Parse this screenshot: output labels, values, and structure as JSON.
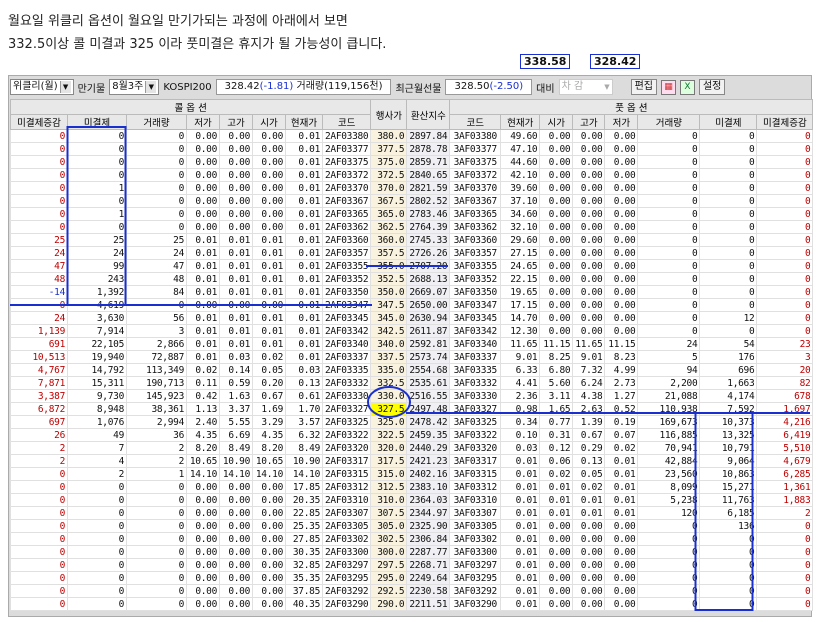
{
  "caption": [
    "월요일 위클리 옵션이 월요일 만기가되는 과정에 아래에서 보면",
    "332.5이상 콜 미결과 325 이라 풋미결은 휴지가 될 가능성이 큽니다."
  ],
  "toolbar": {
    "type_select": "위클리(월)",
    "expiry_label": "만기물",
    "expiry_select": "8월3주",
    "index_label": "KOSPI200",
    "index_price": "328.42",
    "index_change": "(-1.81)",
    "index_volume": "거래량(119,156천)",
    "futures_label": "최근월선물",
    "futures_price": "328.50",
    "futures_change": "(-2.50)",
    "compare_label": "대비",
    "compare_select": "차 감",
    "edit_button": "편집",
    "settings_button": "설정"
  },
  "headers": {
    "call_group": "콜 옵 션",
    "put_group": "풋 옵 션",
    "strike": "행사가",
    "conv": "환산지수",
    "call": [
      "미결제증감",
      "미결제",
      "거래량",
      "저가",
      "고가",
      "시가",
      "현재가",
      "코드"
    ],
    "put": [
      "코드",
      "현재가",
      "시가",
      "고가",
      "저가",
      "거래량",
      "미결제",
      "미결제증감"
    ]
  },
  "annotations": {
    "upper_price": "338.58",
    "current_price": "328.42",
    "highlight_color": "#ffff00",
    "line_color": "#1a2fd0"
  },
  "rows": [
    {
      "c": [
        "0",
        "0",
        "0",
        "0.00",
        "0.00",
        "0.00",
        "0.01",
        "2AF03380"
      ],
      "k": "380.0",
      "x": "2897.84",
      "p": [
        "3AF03380",
        "49.60",
        "0.00",
        "0.00",
        "0.00",
        "0",
        "0",
        "0"
      ]
    },
    {
      "c": [
        "0",
        "0",
        "0",
        "0.00",
        "0.00",
        "0.00",
        "0.01",
        "2AF03377"
      ],
      "k": "377.5",
      "x": "2878.78",
      "p": [
        "3AF03377",
        "47.10",
        "0.00",
        "0.00",
        "0.00",
        "0",
        "0",
        "0"
      ]
    },
    {
      "c": [
        "0",
        "0",
        "0",
        "0.00",
        "0.00",
        "0.00",
        "0.01",
        "2AF03375"
      ],
      "k": "375.0",
      "x": "2859.71",
      "p": [
        "3AF03375",
        "44.60",
        "0.00",
        "0.00",
        "0.00",
        "0",
        "0",
        "0"
      ]
    },
    {
      "c": [
        "0",
        "0",
        "0",
        "0.00",
        "0.00",
        "0.00",
        "0.01",
        "2AF03372"
      ],
      "k": "372.5",
      "x": "2840.65",
      "p": [
        "3AF03372",
        "42.10",
        "0.00",
        "0.00",
        "0.00",
        "0",
        "0",
        "0"
      ]
    },
    {
      "c": [
        "0",
        "1",
        "0",
        "0.00",
        "0.00",
        "0.00",
        "0.01",
        "2AF03370"
      ],
      "k": "370.0",
      "x": "2821.59",
      "p": [
        "3AF03370",
        "39.60",
        "0.00",
        "0.00",
        "0.00",
        "0",
        "0",
        "0"
      ]
    },
    {
      "c": [
        "0",
        "0",
        "0",
        "0.00",
        "0.00",
        "0.00",
        "0.01",
        "2AF03367"
      ],
      "k": "367.5",
      "x": "2802.52",
      "p": [
        "3AF03367",
        "37.10",
        "0.00",
        "0.00",
        "0.00",
        "0",
        "0",
        "0"
      ]
    },
    {
      "c": [
        "0",
        "1",
        "0",
        "0.00",
        "0.00",
        "0.00",
        "0.01",
        "2AF03365"
      ],
      "k": "365.0",
      "x": "2783.46",
      "p": [
        "3AF03365",
        "34.60",
        "0.00",
        "0.00",
        "0.00",
        "0",
        "0",
        "0"
      ]
    },
    {
      "c": [
        "0",
        "0",
        "0",
        "0.00",
        "0.00",
        "0.00",
        "0.01",
        "2AF03362"
      ],
      "k": "362.5",
      "x": "2764.39",
      "p": [
        "3AF03362",
        "32.10",
        "0.00",
        "0.00",
        "0.00",
        "0",
        "0",
        "0"
      ]
    },
    {
      "c": [
        "25",
        "25",
        "25",
        "0.01",
        "0.01",
        "0.01",
        "0.01",
        "2AF03360"
      ],
      "k": "360.0",
      "x": "2745.33",
      "p": [
        "3AF03360",
        "29.60",
        "0.00",
        "0.00",
        "0.00",
        "0",
        "0",
        "0"
      ]
    },
    {
      "c": [
        "24",
        "24",
        "24",
        "0.01",
        "0.01",
        "0.01",
        "0.01",
        "2AF03357"
      ],
      "k": "357.5",
      "x": "2726.26",
      "p": [
        "3AF03357",
        "27.15",
        "0.00",
        "0.00",
        "0.00",
        "0",
        "0",
        "0"
      ]
    },
    {
      "c": [
        "47",
        "99",
        "47",
        "0.01",
        "0.01",
        "0.01",
        "0.01",
        "2AF03355"
      ],
      "k": "355.0",
      "x": "2707.20",
      "p": [
        "3AF03355",
        "24.65",
        "0.00",
        "0.00",
        "0.00",
        "0",
        "0",
        "0"
      ]
    },
    {
      "c": [
        "48",
        "243",
        "48",
        "0.01",
        "0.01",
        "0.01",
        "0.01",
        "2AF03352"
      ],
      "k": "352.5",
      "x": "2688.13",
      "p": [
        "3AF03352",
        "22.15",
        "0.00",
        "0.00",
        "0.00",
        "0",
        "0",
        "0"
      ]
    },
    {
      "c": [
        "-14",
        "1,392",
        "84",
        "0.01",
        "0.01",
        "0.01",
        "0.01",
        "2AF03350"
      ],
      "k": "350.0",
      "x": "2669.07",
      "p": [
        "3AF03350",
        "19.65",
        "0.00",
        "0.00",
        "0.00",
        "0",
        "0",
        "0"
      ]
    },
    {
      "c": [
        "0",
        "4,619",
        "0",
        "0.00",
        "0.00",
        "0.00",
        "0.01",
        "2AF03347"
      ],
      "k": "347.5",
      "x": "2650.00",
      "p": [
        "3AF03347",
        "17.15",
        "0.00",
        "0.00",
        "0.00",
        "0",
        "0",
        "0"
      ]
    },
    {
      "c": [
        "24",
        "3,630",
        "56",
        "0.01",
        "0.01",
        "0.01",
        "0.01",
        "2AF03345"
      ],
      "k": "345.0",
      "x": "2630.94",
      "p": [
        "3AF03345",
        "14.70",
        "0.00",
        "0.00",
        "0.00",
        "0",
        "12",
        "0"
      ]
    },
    {
      "c": [
        "1,139",
        "7,914",
        "3",
        "0.01",
        "0.01",
        "0.01",
        "0.01",
        "2AF03342"
      ],
      "k": "342.5",
      "x": "2611.87",
      "p": [
        "3AF03342",
        "12.30",
        "0.00",
        "0.00",
        "0.00",
        "0",
        "0",
        "0"
      ]
    },
    {
      "c": [
        "691",
        "22,105",
        "2,866",
        "0.01",
        "0.01",
        "0.01",
        "0.01",
        "2AF03340"
      ],
      "k": "340.0",
      "x": "2592.81",
      "p": [
        "3AF03340",
        "11.65",
        "11.15",
        "11.65",
        "11.15",
        "24",
        "54",
        "23"
      ]
    },
    {
      "c": [
        "10,513",
        "19,940",
        "72,887",
        "0.01",
        "0.03",
        "0.02",
        "0.01",
        "2AF03337"
      ],
      "k": "337.5",
      "x": "2573.74",
      "p": [
        "3AF03337",
        "9.01",
        "8.25",
        "9.01",
        "8.23",
        "5",
        "176",
        "3"
      ]
    },
    {
      "c": [
        "4,767",
        "14,792",
        "113,349",
        "0.02",
        "0.14",
        "0.05",
        "0.03",
        "2AF03335"
      ],
      "k": "335.0",
      "x": "2554.68",
      "p": [
        "3AF03335",
        "6.33",
        "6.80",
        "7.32",
        "4.99",
        "94",
        "696",
        "20"
      ]
    },
    {
      "c": [
        "7,871",
        "15,311",
        "190,713",
        "0.11",
        "0.59",
        "0.20",
        "0.13",
        "2AF03332"
      ],
      "k": "332.5",
      "x": "2535.61",
      "p": [
        "3AF03332",
        "4.41",
        "5.60",
        "6.24",
        "2.73",
        "2,200",
        "1,663",
        "82"
      ]
    },
    {
      "c": [
        "3,387",
        "9,730",
        "145,923",
        "0.42",
        "1.63",
        "0.67",
        "0.61",
        "2AF03330"
      ],
      "k": "330.0",
      "x": "2516.55",
      "p": [
        "3AF03330",
        "2.36",
        "3.11",
        "4.38",
        "1.27",
        "21,088",
        "4,174",
        "678"
      ]
    },
    {
      "c": [
        "6,872",
        "8,948",
        "38,361",
        "1.13",
        "3.37",
        "1.69",
        "1.70",
        "2AF03327"
      ],
      "k": "327.5",
      "x": "2497.48",
      "p": [
        "3AF03327",
        "0.98",
        "1.65",
        "2.63",
        "0.52",
        "110,938",
        "7,592",
        "1,697"
      ]
    },
    {
      "c": [
        "697",
        "1,076",
        "2,994",
        "2.40",
        "5.55",
        "3.29",
        "3.57",
        "2AF03325"
      ],
      "k": "325.0",
      "x": "2478.42",
      "p": [
        "3AF03325",
        "0.34",
        "0.77",
        "1.39",
        "0.19",
        "169,673",
        "10,373",
        "4,216"
      ]
    },
    {
      "c": [
        "26",
        "49",
        "36",
        "4.35",
        "6.69",
        "4.35",
        "6.32",
        "2AF03322"
      ],
      "k": "322.5",
      "x": "2459.35",
      "p": [
        "3AF03322",
        "0.10",
        "0.31",
        "0.67",
        "0.07",
        "116,885",
        "13,325",
        "6,419"
      ]
    },
    {
      "c": [
        "2",
        "7",
        "2",
        "8.20",
        "8.49",
        "8.20",
        "8.49",
        "2AF03320"
      ],
      "k": "320.0",
      "x": "2440.29",
      "p": [
        "3AF03320",
        "0.03",
        "0.12",
        "0.29",
        "0.02",
        "70,941",
        "10,791",
        "5,510"
      ]
    },
    {
      "c": [
        "2",
        "4",
        "2",
        "10.65",
        "10.90",
        "10.65",
        "10.90",
        "2AF03317"
      ],
      "k": "317.5",
      "x": "2421.23",
      "p": [
        "3AF03317",
        "0.01",
        "0.06",
        "0.13",
        "0.01",
        "42,884",
        "9,064",
        "4,679"
      ]
    },
    {
      "c": [
        "0",
        "2",
        "1",
        "14.10",
        "14.10",
        "14.10",
        "14.10",
        "2AF03315"
      ],
      "k": "315.0",
      "x": "2402.16",
      "p": [
        "3AF03315",
        "0.01",
        "0.02",
        "0.05",
        "0.01",
        "23,560",
        "10,863",
        "6,285"
      ]
    },
    {
      "c": [
        "0",
        "0",
        "0",
        "0.00",
        "0.00",
        "0.00",
        "17.85",
        "2AF03312"
      ],
      "k": "312.5",
      "x": "2383.10",
      "p": [
        "3AF03312",
        "0.01",
        "0.01",
        "0.02",
        "0.01",
        "8,099",
        "15,271",
        "1,361"
      ]
    },
    {
      "c": [
        "0",
        "0",
        "0",
        "0.00",
        "0.00",
        "0.00",
        "20.35",
        "2AF03310"
      ],
      "k": "310.0",
      "x": "2364.03",
      "p": [
        "3AF03310",
        "0.01",
        "0.01",
        "0.01",
        "0.01",
        "5,238",
        "11,763",
        "1,883"
      ]
    },
    {
      "c": [
        "0",
        "0",
        "0",
        "0.00",
        "0.00",
        "0.00",
        "22.85",
        "2AF03307"
      ],
      "k": "307.5",
      "x": "2344.97",
      "p": [
        "3AF03307",
        "0.01",
        "0.01",
        "0.01",
        "0.01",
        "120",
        "6,185",
        "2"
      ]
    },
    {
      "c": [
        "0",
        "0",
        "0",
        "0.00",
        "0.00",
        "0.00",
        "25.35",
        "2AF03305"
      ],
      "k": "305.0",
      "x": "2325.90",
      "p": [
        "3AF03305",
        "0.01",
        "0.00",
        "0.00",
        "0.00",
        "0",
        "136",
        "0"
      ]
    },
    {
      "c": [
        "0",
        "0",
        "0",
        "0.00",
        "0.00",
        "0.00",
        "27.85",
        "2AF03302"
      ],
      "k": "302.5",
      "x": "2306.84",
      "p": [
        "3AF03302",
        "0.01",
        "0.00",
        "0.00",
        "0.00",
        "0",
        "0",
        "0"
      ]
    },
    {
      "c": [
        "0",
        "0",
        "0",
        "0.00",
        "0.00",
        "0.00",
        "30.35",
        "2AF03300"
      ],
      "k": "300.0",
      "x": "2287.77",
      "p": [
        "3AF03300",
        "0.01",
        "0.00",
        "0.00",
        "0.00",
        "0",
        "0",
        "0"
      ]
    },
    {
      "c": [
        "0",
        "0",
        "0",
        "0.00",
        "0.00",
        "0.00",
        "32.85",
        "2AF03297"
      ],
      "k": "297.5",
      "x": "2268.71",
      "p": [
        "3AF03297",
        "0.01",
        "0.00",
        "0.00",
        "0.00",
        "0",
        "0",
        "0"
      ]
    },
    {
      "c": [
        "0",
        "0",
        "0",
        "0.00",
        "0.00",
        "0.00",
        "35.35",
        "2AF03295"
      ],
      "k": "295.0",
      "x": "2249.64",
      "p": [
        "3AF03295",
        "0.01",
        "0.00",
        "0.00",
        "0.00",
        "0",
        "0",
        "0"
      ]
    },
    {
      "c": [
        "0",
        "0",
        "0",
        "0.00",
        "0.00",
        "0.00",
        "37.85",
        "2AF03292"
      ],
      "k": "292.5",
      "x": "2230.58",
      "p": [
        "3AF03292",
        "0.01",
        "0.00",
        "0.00",
        "0.00",
        "0",
        "0",
        "0"
      ]
    },
    {
      "c": [
        "0",
        "0",
        "0",
        "0.00",
        "0.00",
        "0.00",
        "40.35",
        "2AF03290"
      ],
      "k": "290.0",
      "x": "2211.51",
      "p": [
        "3AF03290",
        "0.01",
        "0.00",
        "0.00",
        "0.00",
        "0",
        "0",
        "0"
      ]
    }
  ]
}
